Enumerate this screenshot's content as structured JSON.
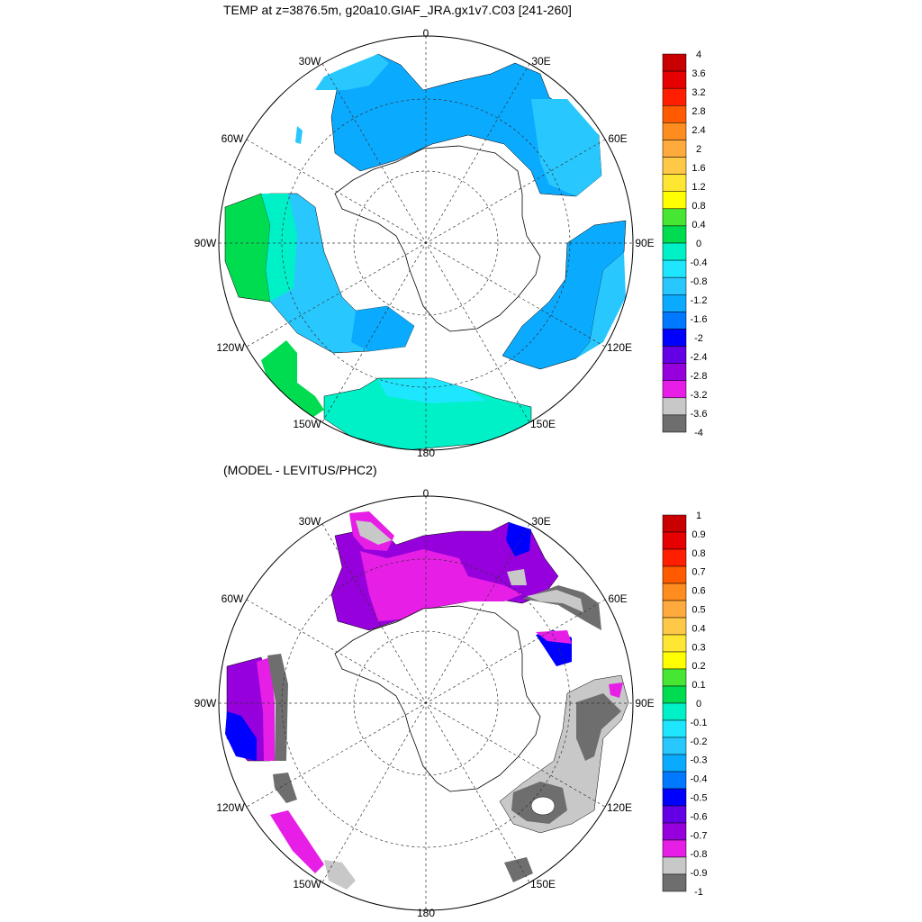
{
  "top_panel": {
    "title": "TEMP at z=3876.5m, g20a10.GIAF_JRA.gx1v7.C03 [241-260]",
    "lon_labels": {
      "n": "0",
      "ne30": "30E",
      "e60": "60E",
      "e90": "90E",
      "e120": "120E",
      "e150": "150E",
      "s": "180",
      "w150": "150W",
      "w120": "120W",
      "w90": "90W",
      "w60": "60W",
      "w30": "30W"
    },
    "colorbar": {
      "labels": [
        "4",
        "3.6",
        "3.2",
        "2.8",
        "2.4",
        "2",
        "1.6",
        "1.2",
        "0.8",
        "0.4",
        "0",
        "-0.4",
        "-0.8",
        "-1.2",
        "-1.6",
        "-2",
        "-2.4",
        "-2.8",
        "-3.2",
        "-3.6",
        "-4"
      ],
      "colors": [
        "#c80000",
        "#e60000",
        "#ff1e00",
        "#ff5a00",
        "#ff8c1e",
        "#ffaa3c",
        "#ffc846",
        "#ffe632",
        "#ffff00",
        "#46e632",
        "#00dc50",
        "#00f0c8",
        "#1ee6ff",
        "#28c8ff",
        "#0aaaff",
        "#0078ff",
        "#0000ff",
        "#6400e6",
        "#9600dc",
        "#e61ee6",
        "#c8c8c8",
        "#6e6e6e"
      ]
    }
  },
  "bottom_panel": {
    "title": "(MODEL - LEVITUS/PHC2)",
    "lon_labels": {
      "n": "0",
      "ne30": "30E",
      "e60": "60E",
      "e90": "90E",
      "e120": "120E",
      "e150": "150E",
      "s": "180",
      "w150": "150W",
      "w120": "120W",
      "w90": "90W",
      "w60": "60W",
      "w30": "30W"
    },
    "colorbar": {
      "labels": [
        "1",
        "0.9",
        "0.8",
        "0.7",
        "0.6",
        "0.5",
        "0.4",
        "0.3",
        "0.2",
        "0.1",
        "0",
        "-0.1",
        "-0.2",
        "-0.3",
        "-0.4",
        "-0.5",
        "-0.6",
        "-0.7",
        "-0.8",
        "-0.9",
        "-1"
      ],
      "colors": [
        "#c80000",
        "#e60000",
        "#ff1e00",
        "#ff5a00",
        "#ff8c1e",
        "#ffaa3c",
        "#ffc846",
        "#ffe632",
        "#ffff00",
        "#46e632",
        "#00dc50",
        "#00f0c8",
        "#1ee6ff",
        "#28c8ff",
        "#0aaaff",
        "#0078ff",
        "#0000ff",
        "#6400e6",
        "#9600dc",
        "#e61ee6",
        "#c8c8c8",
        "#6e6e6e"
      ]
    }
  }
}
